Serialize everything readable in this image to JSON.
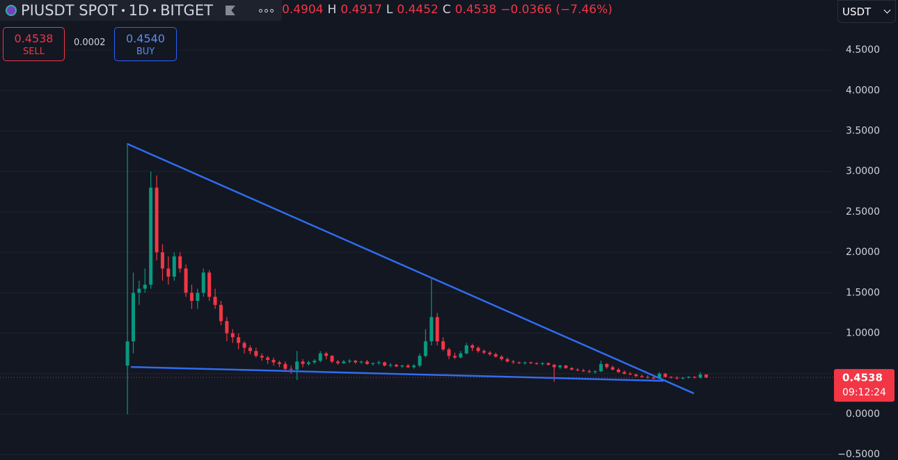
{
  "header": {
    "symbol": "PIUSDT SPOT",
    "interval": "1D",
    "exchange": "BITGET",
    "ohlc": [
      {
        "value": "0.4904"
      },
      {
        "key": "H",
        "value": "0.4917"
      },
      {
        "key": "L",
        "value": "0.4452"
      },
      {
        "key": "C",
        "value": "0.4538"
      }
    ],
    "change": "−0.0366 (−7.46%)",
    "quote_currency": "USDT"
  },
  "trade": {
    "sell_price": "0.4538",
    "sell": "SELL",
    "spread": "0.0002",
    "buy_price": "0.4540",
    "buy": "BUY"
  },
  "chart_data": {
    "type": "candlestick",
    "up_color": "#089981",
    "down_color": "#f23645",
    "x": [
      0,
      1,
      2,
      3,
      4,
      5,
      6,
      7,
      8,
      9,
      10,
      11,
      12,
      13,
      14,
      15,
      16,
      17,
      18,
      19,
      20,
      21,
      22,
      23,
      24,
      25,
      26,
      27,
      28,
      29,
      30,
      31,
      32,
      33,
      34,
      35,
      36,
      37,
      38,
      39,
      40,
      41,
      42,
      43,
      44,
      45,
      46,
      47,
      48,
      49,
      50,
      51,
      52,
      53,
      54,
      55,
      56,
      57,
      58,
      59,
      60,
      61,
      62,
      63,
      64,
      65,
      66,
      67,
      68,
      69,
      70,
      71,
      72,
      73,
      74,
      75,
      76,
      77,
      78,
      79,
      80,
      81,
      82,
      83,
      84,
      85,
      86,
      87,
      88,
      89,
      90,
      91,
      92,
      93,
      94,
      95,
      96,
      97,
      98,
      99
    ],
    "open": [
      0.6,
      0.9,
      1.5,
      1.55,
      1.6,
      2.8,
      2.0,
      1.8,
      1.7,
      1.95,
      1.8,
      1.5,
      1.4,
      1.5,
      1.75,
      1.45,
      1.35,
      1.15,
      1.0,
      0.95,
      0.88,
      0.82,
      0.78,
      0.72,
      0.7,
      0.67,
      0.64,
      0.62,
      0.56,
      0.55,
      0.65,
      0.62,
      0.64,
      0.66,
      0.75,
      0.72,
      0.65,
      0.63,
      0.65,
      0.66,
      0.64,
      0.65,
      0.62,
      0.63,
      0.64,
      0.6,
      0.61,
      0.59,
      0.6,
      0.58,
      0.6,
      0.72,
      0.9,
      1.2,
      0.9,
      0.8,
      0.72,
      0.7,
      0.75,
      0.85,
      0.82,
      0.78,
      0.76,
      0.74,
      0.71,
      0.68,
      0.65,
      0.64,
      0.63,
      0.64,
      0.63,
      0.62,
      0.63,
      0.61,
      0.58,
      0.6,
      0.57,
      0.55,
      0.54,
      0.53,
      0.52,
      0.53,
      0.62,
      0.58,
      0.55,
      0.52,
      0.5,
      0.49,
      0.47,
      0.46,
      0.45,
      0.44,
      0.5,
      0.46,
      0.45,
      0.44,
      0.45,
      0.46,
      0.45,
      0.4904
    ],
    "high": [
      3.35,
      1.75,
      1.65,
      1.8,
      3.0,
      2.95,
      2.1,
      1.95,
      2.0,
      2.0,
      1.85,
      1.6,
      1.55,
      1.8,
      1.78,
      1.55,
      1.4,
      1.2,
      1.05,
      1.0,
      0.9,
      0.85,
      0.82,
      0.75,
      0.72,
      0.7,
      0.66,
      0.65,
      0.6,
      0.78,
      0.68,
      0.66,
      0.68,
      0.78,
      0.77,
      0.73,
      0.67,
      0.67,
      0.68,
      0.67,
      0.66,
      0.67,
      0.64,
      0.66,
      0.65,
      0.63,
      0.62,
      0.61,
      0.62,
      0.62,
      0.75,
      1.05,
      1.67,
      1.25,
      0.95,
      0.82,
      0.76,
      0.78,
      0.88,
      0.87,
      0.84,
      0.8,
      0.78,
      0.76,
      0.73,
      0.7,
      0.67,
      0.65,
      0.65,
      0.65,
      0.64,
      0.64,
      0.64,
      0.62,
      0.61,
      0.61,
      0.58,
      0.57,
      0.56,
      0.55,
      0.54,
      0.66,
      0.63,
      0.6,
      0.57,
      0.54,
      0.52,
      0.5,
      0.49,
      0.48,
      0.47,
      0.52,
      0.51,
      0.47,
      0.47,
      0.46,
      0.47,
      0.47,
      0.52,
      0.4917
    ],
    "low": [
      0.0,
      0.75,
      1.35,
      1.5,
      1.55,
      1.9,
      1.65,
      1.6,
      1.65,
      1.75,
      1.45,
      1.3,
      1.3,
      1.45,
      1.4,
      1.3,
      1.1,
      0.9,
      0.88,
      0.8,
      0.75,
      0.74,
      0.7,
      0.66,
      0.62,
      0.6,
      0.58,
      0.52,
      0.5,
      0.42,
      0.58,
      0.6,
      0.62,
      0.64,
      0.68,
      0.63,
      0.61,
      0.62,
      0.63,
      0.62,
      0.62,
      0.61,
      0.6,
      0.61,
      0.59,
      0.58,
      0.58,
      0.57,
      0.57,
      0.56,
      0.58,
      0.7,
      0.85,
      0.85,
      0.78,
      0.68,
      0.68,
      0.69,
      0.74,
      0.78,
      0.76,
      0.74,
      0.72,
      0.7,
      0.66,
      0.64,
      0.62,
      0.62,
      0.61,
      0.62,
      0.61,
      0.6,
      0.6,
      0.4,
      0.56,
      0.56,
      0.54,
      0.53,
      0.52,
      0.51,
      0.5,
      0.52,
      0.56,
      0.54,
      0.51,
      0.49,
      0.48,
      0.46,
      0.45,
      0.44,
      0.43,
      0.43,
      0.45,
      0.44,
      0.43,
      0.43,
      0.44,
      0.44,
      0.44,
      0.4452
    ],
    "close": [
      0.9,
      1.5,
      1.55,
      1.6,
      2.8,
      2.0,
      1.8,
      1.7,
      1.95,
      1.8,
      1.5,
      1.4,
      1.5,
      1.75,
      1.45,
      1.35,
      1.15,
      1.0,
      0.95,
      0.88,
      0.82,
      0.78,
      0.72,
      0.7,
      0.67,
      0.64,
      0.62,
      0.56,
      0.55,
      0.65,
      0.62,
      0.64,
      0.66,
      0.75,
      0.72,
      0.65,
      0.63,
      0.65,
      0.66,
      0.64,
      0.65,
      0.62,
      0.63,
      0.64,
      0.6,
      0.61,
      0.59,
      0.6,
      0.58,
      0.6,
      0.72,
      0.9,
      1.2,
      0.9,
      0.8,
      0.72,
      0.7,
      0.75,
      0.85,
      0.82,
      0.78,
      0.76,
      0.74,
      0.71,
      0.68,
      0.65,
      0.64,
      0.63,
      0.64,
      0.63,
      0.62,
      0.63,
      0.61,
      0.58,
      0.6,
      0.57,
      0.55,
      0.54,
      0.53,
      0.52,
      0.53,
      0.62,
      0.58,
      0.55,
      0.52,
      0.5,
      0.49,
      0.47,
      0.46,
      0.45,
      0.44,
      0.5,
      0.46,
      0.45,
      0.44,
      0.45,
      0.46,
      0.45,
      0.4904,
      0.4538
    ],
    "xlim": [
      -21.8,
      120.5
    ],
    "ylim": [
      -0.567,
      5.119
    ],
    "yticks": [
      {
        "value": -0.5,
        "label": "−0.5000"
      },
      {
        "value": 0,
        "label": "0.0000"
      },
      {
        "value": 0.5,
        "label": "0.5000"
      },
      {
        "value": 1,
        "label": "1.0000"
      },
      {
        "value": 1.5,
        "label": "1.5000"
      },
      {
        "value": 2,
        "label": "2.0000"
      },
      {
        "value": 2.5,
        "label": "2.5000"
      },
      {
        "value": 3,
        "label": "3.0000"
      },
      {
        "value": 3.5,
        "label": "3.5000"
      },
      {
        "value": 4,
        "label": "4.0000"
      },
      {
        "value": 4.5,
        "label": "4.5000"
      }
    ],
    "grid": true,
    "trendlines": [
      {
        "x": [
          0,
          96.9
        ],
        "y": [
          3.34,
          0.256
        ],
        "color": "#2f6df0"
      },
      {
        "x": [
          0.6,
          91.7
        ],
        "y": [
          0.583,
          0.411
        ],
        "color": "#2f6df0"
      }
    ],
    "last_price": 0.4538,
    "countdown": "09:12:24"
  }
}
